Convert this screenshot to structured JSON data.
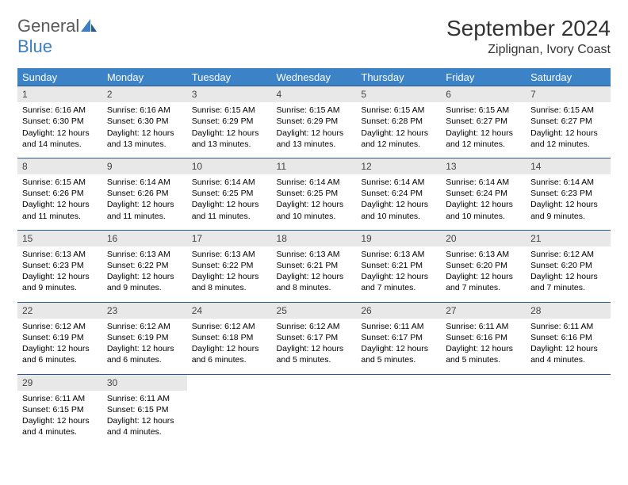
{
  "logo": {
    "text1": "General",
    "text2": "Blue"
  },
  "title": "September 2024",
  "location": "Ziplignan, Ivory Coast",
  "header_bg": "#3b82c7",
  "header_fg": "#ffffff",
  "daynum_bg": "#e8e8e8",
  "row_border": "#2c5a8a",
  "weekdays": [
    "Sunday",
    "Monday",
    "Tuesday",
    "Wednesday",
    "Thursday",
    "Friday",
    "Saturday"
  ],
  "days": [
    {
      "n": "1",
      "sunrise": "6:16 AM",
      "sunset": "6:30 PM",
      "dl": "12 hours and 14 minutes."
    },
    {
      "n": "2",
      "sunrise": "6:16 AM",
      "sunset": "6:30 PM",
      "dl": "12 hours and 13 minutes."
    },
    {
      "n": "3",
      "sunrise": "6:15 AM",
      "sunset": "6:29 PM",
      "dl": "12 hours and 13 minutes."
    },
    {
      "n": "4",
      "sunrise": "6:15 AM",
      "sunset": "6:29 PM",
      "dl": "12 hours and 13 minutes."
    },
    {
      "n": "5",
      "sunrise": "6:15 AM",
      "sunset": "6:28 PM",
      "dl": "12 hours and 12 minutes."
    },
    {
      "n": "6",
      "sunrise": "6:15 AM",
      "sunset": "6:27 PM",
      "dl": "12 hours and 12 minutes."
    },
    {
      "n": "7",
      "sunrise": "6:15 AM",
      "sunset": "6:27 PM",
      "dl": "12 hours and 12 minutes."
    },
    {
      "n": "8",
      "sunrise": "6:15 AM",
      "sunset": "6:26 PM",
      "dl": "12 hours and 11 minutes."
    },
    {
      "n": "9",
      "sunrise": "6:14 AM",
      "sunset": "6:26 PM",
      "dl": "12 hours and 11 minutes."
    },
    {
      "n": "10",
      "sunrise": "6:14 AM",
      "sunset": "6:25 PM",
      "dl": "12 hours and 11 minutes."
    },
    {
      "n": "11",
      "sunrise": "6:14 AM",
      "sunset": "6:25 PM",
      "dl": "12 hours and 10 minutes."
    },
    {
      "n": "12",
      "sunrise": "6:14 AM",
      "sunset": "6:24 PM",
      "dl": "12 hours and 10 minutes."
    },
    {
      "n": "13",
      "sunrise": "6:14 AM",
      "sunset": "6:24 PM",
      "dl": "12 hours and 10 minutes."
    },
    {
      "n": "14",
      "sunrise": "6:14 AM",
      "sunset": "6:23 PM",
      "dl": "12 hours and 9 minutes."
    },
    {
      "n": "15",
      "sunrise": "6:13 AM",
      "sunset": "6:23 PM",
      "dl": "12 hours and 9 minutes."
    },
    {
      "n": "16",
      "sunrise": "6:13 AM",
      "sunset": "6:22 PM",
      "dl": "12 hours and 9 minutes."
    },
    {
      "n": "17",
      "sunrise": "6:13 AM",
      "sunset": "6:22 PM",
      "dl": "12 hours and 8 minutes."
    },
    {
      "n": "18",
      "sunrise": "6:13 AM",
      "sunset": "6:21 PM",
      "dl": "12 hours and 8 minutes."
    },
    {
      "n": "19",
      "sunrise": "6:13 AM",
      "sunset": "6:21 PM",
      "dl": "12 hours and 7 minutes."
    },
    {
      "n": "20",
      "sunrise": "6:13 AM",
      "sunset": "6:20 PM",
      "dl": "12 hours and 7 minutes."
    },
    {
      "n": "21",
      "sunrise": "6:12 AM",
      "sunset": "6:20 PM",
      "dl": "12 hours and 7 minutes."
    },
    {
      "n": "22",
      "sunrise": "6:12 AM",
      "sunset": "6:19 PM",
      "dl": "12 hours and 6 minutes."
    },
    {
      "n": "23",
      "sunrise": "6:12 AM",
      "sunset": "6:19 PM",
      "dl": "12 hours and 6 minutes."
    },
    {
      "n": "24",
      "sunrise": "6:12 AM",
      "sunset": "6:18 PM",
      "dl": "12 hours and 6 minutes."
    },
    {
      "n": "25",
      "sunrise": "6:12 AM",
      "sunset": "6:17 PM",
      "dl": "12 hours and 5 minutes."
    },
    {
      "n": "26",
      "sunrise": "6:11 AM",
      "sunset": "6:17 PM",
      "dl": "12 hours and 5 minutes."
    },
    {
      "n": "27",
      "sunrise": "6:11 AM",
      "sunset": "6:16 PM",
      "dl": "12 hours and 5 minutes."
    },
    {
      "n": "28",
      "sunrise": "6:11 AM",
      "sunset": "6:16 PM",
      "dl": "12 hours and 4 minutes."
    },
    {
      "n": "29",
      "sunrise": "6:11 AM",
      "sunset": "6:15 PM",
      "dl": "12 hours and 4 minutes."
    },
    {
      "n": "30",
      "sunrise": "6:11 AM",
      "sunset": "6:15 PM",
      "dl": "12 hours and 4 minutes."
    }
  ],
  "labels": {
    "sunrise": "Sunrise:",
    "sunset": "Sunset:",
    "daylight": "Daylight:"
  }
}
